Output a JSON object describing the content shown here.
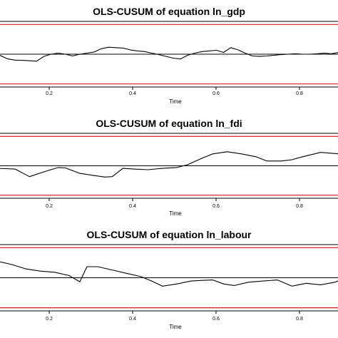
{
  "chart_data": [
    {
      "type": "line",
      "title": "OLS-CUSUM of equation ln_gdp",
      "xlabel": "Time",
      "ylabel": "",
      "xticks": [
        "0.2",
        "0.4",
        "0.6",
        "0.8"
      ],
      "xlim": [
        0.0,
        1.0
      ],
      "ylim": [
        -1.5,
        1.5
      ],
      "colors": {
        "series": "#000000",
        "zero": "#000000",
        "bound": "#d62020",
        "frame": "#000000"
      },
      "boundary": 1.36,
      "series": [
        {
          "x": [
            0.0,
            0.03,
            0.05,
            0.07,
            0.09,
            0.11,
            0.13,
            0.15,
            0.17,
            0.19,
            0.21,
            0.23,
            0.25,
            0.27,
            0.29,
            0.31,
            0.33,
            0.35,
            0.37,
            0.39,
            0.41,
            0.43,
            0.45,
            0.47,
            0.49,
            0.51,
            0.53,
            0.55,
            0.57,
            0.59,
            0.61,
            0.63,
            0.65,
            0.67,
            0.69,
            0.71,
            0.73,
            0.75,
            0.77,
            0.79,
            0.81,
            0.83,
            0.85,
            0.87,
            0.89,
            0.91,
            0.93,
            0.95,
            0.97,
            0.99,
            1.0
          ],
          "y": [
            0.0,
            -0.22,
            -0.27,
            -0.28,
            -0.3,
            -0.32,
            -0.1,
            0.0,
            0.05,
            0.0,
            -0.08,
            0.0,
            0.05,
            0.1,
            0.25,
            0.32,
            0.3,
            0.28,
            0.2,
            0.15,
            0.12,
            0.05,
            -0.02,
            -0.1,
            -0.18,
            -0.22,
            -0.05,
            0.05,
            0.12,
            0.15,
            0.18,
            0.08,
            0.3,
            0.2,
            0.05,
            -0.08,
            -0.1,
            -0.08,
            -0.05,
            -0.02,
            0.0,
            0.02,
            0.0,
            0.0,
            0.02,
            0.05,
            0.02,
            0.08,
            0.22,
            0.38,
            0.42
          ]
        }
      ]
    },
    {
      "type": "line",
      "title": "OLS-CUSUM of equation ln_fdi",
      "xlabel": "Time",
      "ylabel": "",
      "xticks": [
        "0.2",
        "0.4",
        "0.6",
        "0.8"
      ],
      "xlim": [
        0.0,
        1.0
      ],
      "ylim": [
        -1.5,
        1.5
      ],
      "colors": {
        "series": "#000000",
        "zero": "#000000",
        "bound": "#d62020",
        "frame": "#000000"
      },
      "boundary": 1.36,
      "series": [
        {
          "x": [
            0.0,
            0.05,
            0.09,
            0.13,
            0.17,
            0.19,
            0.23,
            0.27,
            0.3,
            0.32,
            0.35,
            0.38,
            0.42,
            0.46,
            0.5,
            0.53,
            0.57,
            0.6,
            0.64,
            0.68,
            0.72,
            0.75,
            0.79,
            0.82,
            0.85,
            0.9,
            0.95,
            1.0
          ],
          "y": [
            -0.12,
            -0.15,
            -0.5,
            -0.28,
            -0.08,
            -0.1,
            -0.35,
            -0.45,
            -0.52,
            -0.5,
            -0.12,
            -0.15,
            -0.18,
            -0.12,
            -0.08,
            0.05,
            0.35,
            0.55,
            0.65,
            0.55,
            0.42,
            0.22,
            0.22,
            0.28,
            0.42,
            0.62,
            0.55,
            0.3
          ]
        }
      ]
    },
    {
      "type": "line",
      "title": "OLS-CUSUM of equation ln_labour",
      "xlabel": "Time",
      "ylabel": "",
      "xticks": [
        "0.2",
        "0.4",
        "0.6",
        "0.8"
      ],
      "xlim": [
        0.0,
        1.0
      ],
      "ylim": [
        -1.5,
        1.5
      ],
      "colors": {
        "series": "#000000",
        "zero": "#000000",
        "bound": "#d62020",
        "frame": "#000000"
      },
      "boundary": 1.36,
      "series": [
        {
          "x": [
            0.0,
            0.04,
            0.08,
            0.12,
            0.16,
            0.2,
            0.23,
            0.25,
            0.28,
            0.32,
            0.36,
            0.4,
            0.43,
            0.46,
            0.5,
            0.54,
            0.57,
            0.6,
            0.63,
            0.66,
            0.7,
            0.74,
            0.78,
            0.82,
            0.86,
            0.9,
            0.94,
            0.97,
            1.0
          ],
          "y": [
            0.75,
            0.6,
            0.4,
            0.3,
            0.25,
            0.1,
            -0.18,
            0.5,
            0.5,
            0.35,
            0.2,
            0.05,
            -0.15,
            -0.38,
            -0.28,
            -0.15,
            -0.12,
            -0.1,
            -0.28,
            -0.35,
            -0.2,
            -0.15,
            -0.1,
            -0.38,
            -0.25,
            -0.32,
            -0.2,
            0.0,
            0.05
          ]
        }
      ]
    }
  ]
}
